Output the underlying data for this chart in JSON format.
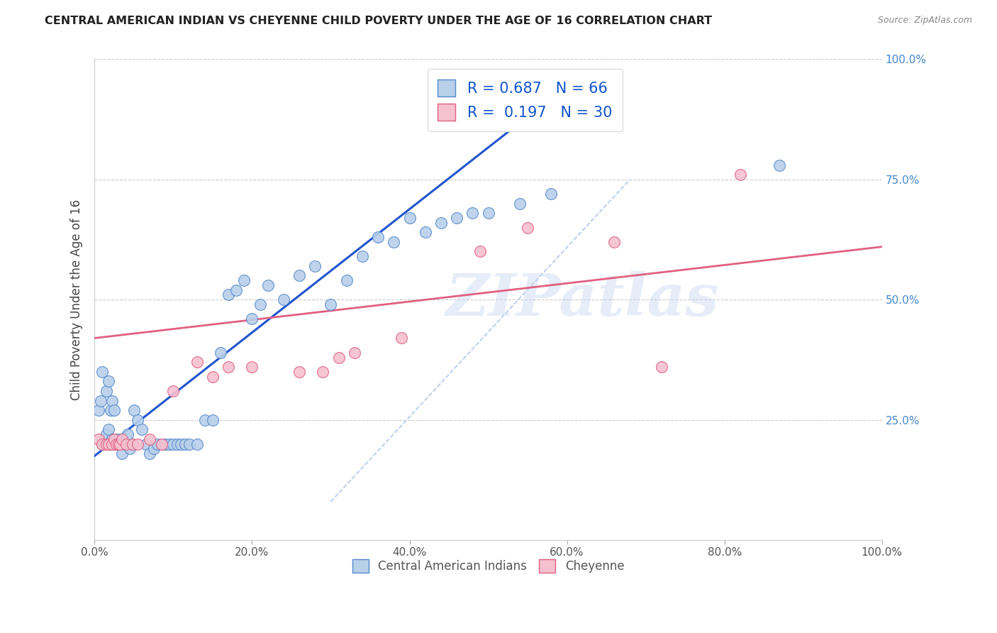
{
  "title": "CENTRAL AMERICAN INDIAN VS CHEYENNE CHILD POVERTY UNDER THE AGE OF 16 CORRELATION CHART",
  "source": "Source: ZipAtlas.com",
  "ylabel": "Child Poverty Under the Age of 16",
  "xlim": [
    0,
    1.0
  ],
  "ylim": [
    0,
    1.0
  ],
  "xtick_labels": [
    "0.0%",
    "20.0%",
    "40.0%",
    "60.0%",
    "80.0%",
    "100.0%"
  ],
  "xtick_vals": [
    0.0,
    0.2,
    0.4,
    0.6,
    0.8,
    1.0
  ],
  "ytick_labels": [
    "25.0%",
    "50.0%",
    "75.0%",
    "100.0%"
  ],
  "ytick_vals": [
    0.25,
    0.5,
    0.75,
    1.0
  ],
  "blue_R": 0.687,
  "blue_N": 66,
  "pink_R": 0.197,
  "pink_N": 30,
  "blue_color": "#b8d0ea",
  "blue_edge": "#5588cc",
  "pink_color": "#f5c0d0",
  "pink_edge": "#e06080",
  "blue_line_color": "#2255cc",
  "pink_line_color": "#e06080",
  "diag_line_color": "#b0c8e8",
  "watermark": "ZIPatlas",
  "legend_blue_label": "Central American Indians",
  "legend_pink_label": "Cheyenne",
  "blue_scatter_x": [
    0.005,
    0.008,
    0.01,
    0.012,
    0.015,
    0.018,
    0.02,
    0.022,
    0.025,
    0.028,
    0.01,
    0.015,
    0.018,
    0.02,
    0.022,
    0.025,
    0.03,
    0.032,
    0.035,
    0.038,
    0.04,
    0.042,
    0.045,
    0.048,
    0.05,
    0.055,
    0.06,
    0.065,
    0.07,
    0.075,
    0.08,
    0.085,
    0.09,
    0.095,
    0.1,
    0.105,
    0.11,
    0.115,
    0.12,
    0.13,
    0.14,
    0.15,
    0.16,
    0.17,
    0.18,
    0.19,
    0.2,
    0.21,
    0.22,
    0.24,
    0.26,
    0.28,
    0.3,
    0.32,
    0.34,
    0.36,
    0.38,
    0.4,
    0.42,
    0.44,
    0.46,
    0.48,
    0.5,
    0.54,
    0.58,
    0.87
  ],
  "blue_scatter_y": [
    0.27,
    0.29,
    0.2,
    0.21,
    0.22,
    0.23,
    0.2,
    0.21,
    0.2,
    0.21,
    0.35,
    0.31,
    0.33,
    0.27,
    0.29,
    0.27,
    0.2,
    0.21,
    0.18,
    0.2,
    0.21,
    0.22,
    0.19,
    0.2,
    0.27,
    0.25,
    0.23,
    0.2,
    0.18,
    0.19,
    0.2,
    0.2,
    0.2,
    0.2,
    0.2,
    0.2,
    0.2,
    0.2,
    0.2,
    0.2,
    0.25,
    0.25,
    0.39,
    0.51,
    0.52,
    0.54,
    0.46,
    0.49,
    0.53,
    0.5,
    0.55,
    0.57,
    0.49,
    0.54,
    0.59,
    0.63,
    0.62,
    0.67,
    0.64,
    0.66,
    0.67,
    0.68,
    0.68,
    0.7,
    0.72,
    0.78
  ],
  "pink_scatter_x": [
    0.005,
    0.01,
    0.015,
    0.018,
    0.022,
    0.025,
    0.028,
    0.03,
    0.032,
    0.035,
    0.04,
    0.048,
    0.055,
    0.07,
    0.085,
    0.1,
    0.13,
    0.15,
    0.17,
    0.2,
    0.26,
    0.29,
    0.31,
    0.33,
    0.39,
    0.49,
    0.55,
    0.66,
    0.72,
    0.82
  ],
  "pink_scatter_y": [
    0.21,
    0.2,
    0.2,
    0.2,
    0.2,
    0.21,
    0.2,
    0.2,
    0.2,
    0.21,
    0.2,
    0.2,
    0.2,
    0.21,
    0.2,
    0.31,
    0.37,
    0.34,
    0.36,
    0.36,
    0.35,
    0.35,
    0.38,
    0.39,
    0.42,
    0.6,
    0.65,
    0.62,
    0.36,
    0.76
  ],
  "blue_line_x": [
    0.0,
    0.53
  ],
  "blue_line_y": [
    0.175,
    0.855
  ],
  "pink_line_x": [
    0.0,
    1.0
  ],
  "pink_line_y": [
    0.42,
    0.61
  ],
  "diag_line_x": [
    0.3,
    0.68
  ],
  "diag_line_y": [
    0.08,
    0.75
  ]
}
